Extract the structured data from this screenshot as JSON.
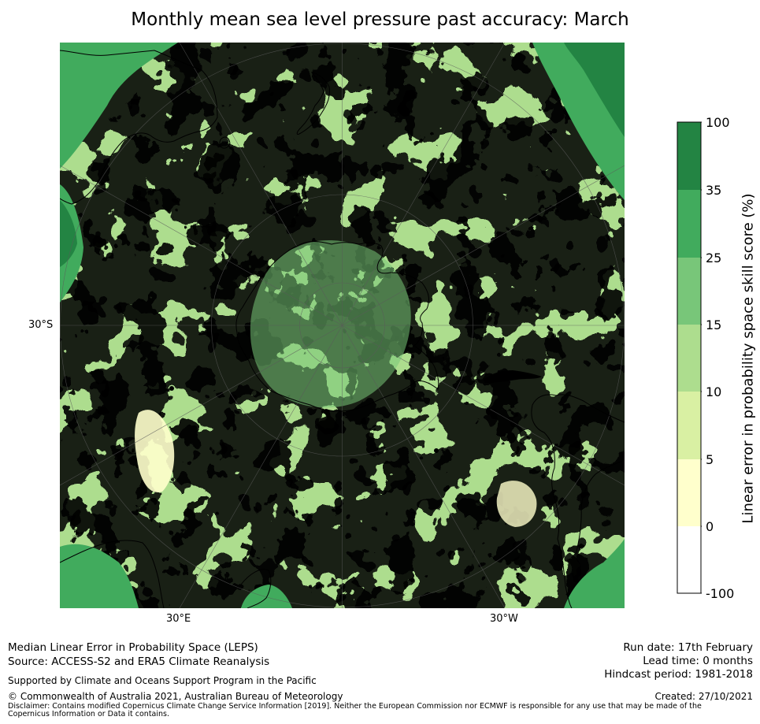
{
  "title": "Monthly mean sea level pressure past accuracy: March",
  "map": {
    "projection": "south-polar-stereographic",
    "lat_label_left": "30°S",
    "lon_label_30e": "30°E",
    "lon_label_30w": "30°W"
  },
  "colors": {
    "band_neg100_0": "#ffffff",
    "band_0_5": "#ffffcc",
    "band_5_10": "#d9f0a3",
    "band_10_15": "#addd8e",
    "band_15_25": "#78c679",
    "band_25_35": "#41ab5d",
    "band_35_100": "#238443",
    "coast": "#000000",
    "graticule": "#5a5a5a"
  },
  "colorbar": {
    "title": "Linear error in probability space skill score (%)",
    "ticks": [
      "100",
      "35",
      "25",
      "15",
      "10",
      "5",
      "0",
      "-100"
    ]
  },
  "footer": {
    "left_line1": "Median Linear Error in Probability Space (LEPS)",
    "left_line2": "Source: ACCESS-S2 and ERA5 Climate Reanalysis",
    "support": "Supported by Climate and Oceans Support Program in the Pacific",
    "copyright": "© Commonwealth of Australia 2021, Australian Bureau of Meteorology",
    "disclaimer": "Disclaimer: Contains modified Copernicus Climate Change Service Information [2019]. Neither the European Commission nor ECMWF is responsible for any use that may be made of the Copernicus Information or Data it contains.",
    "run_date": "Run date: 17th February",
    "lead_time": "Lead time: 0 months",
    "hindcast": "Hindcast period: 1981-2018",
    "created": "Created: 27/10/2021"
  }
}
